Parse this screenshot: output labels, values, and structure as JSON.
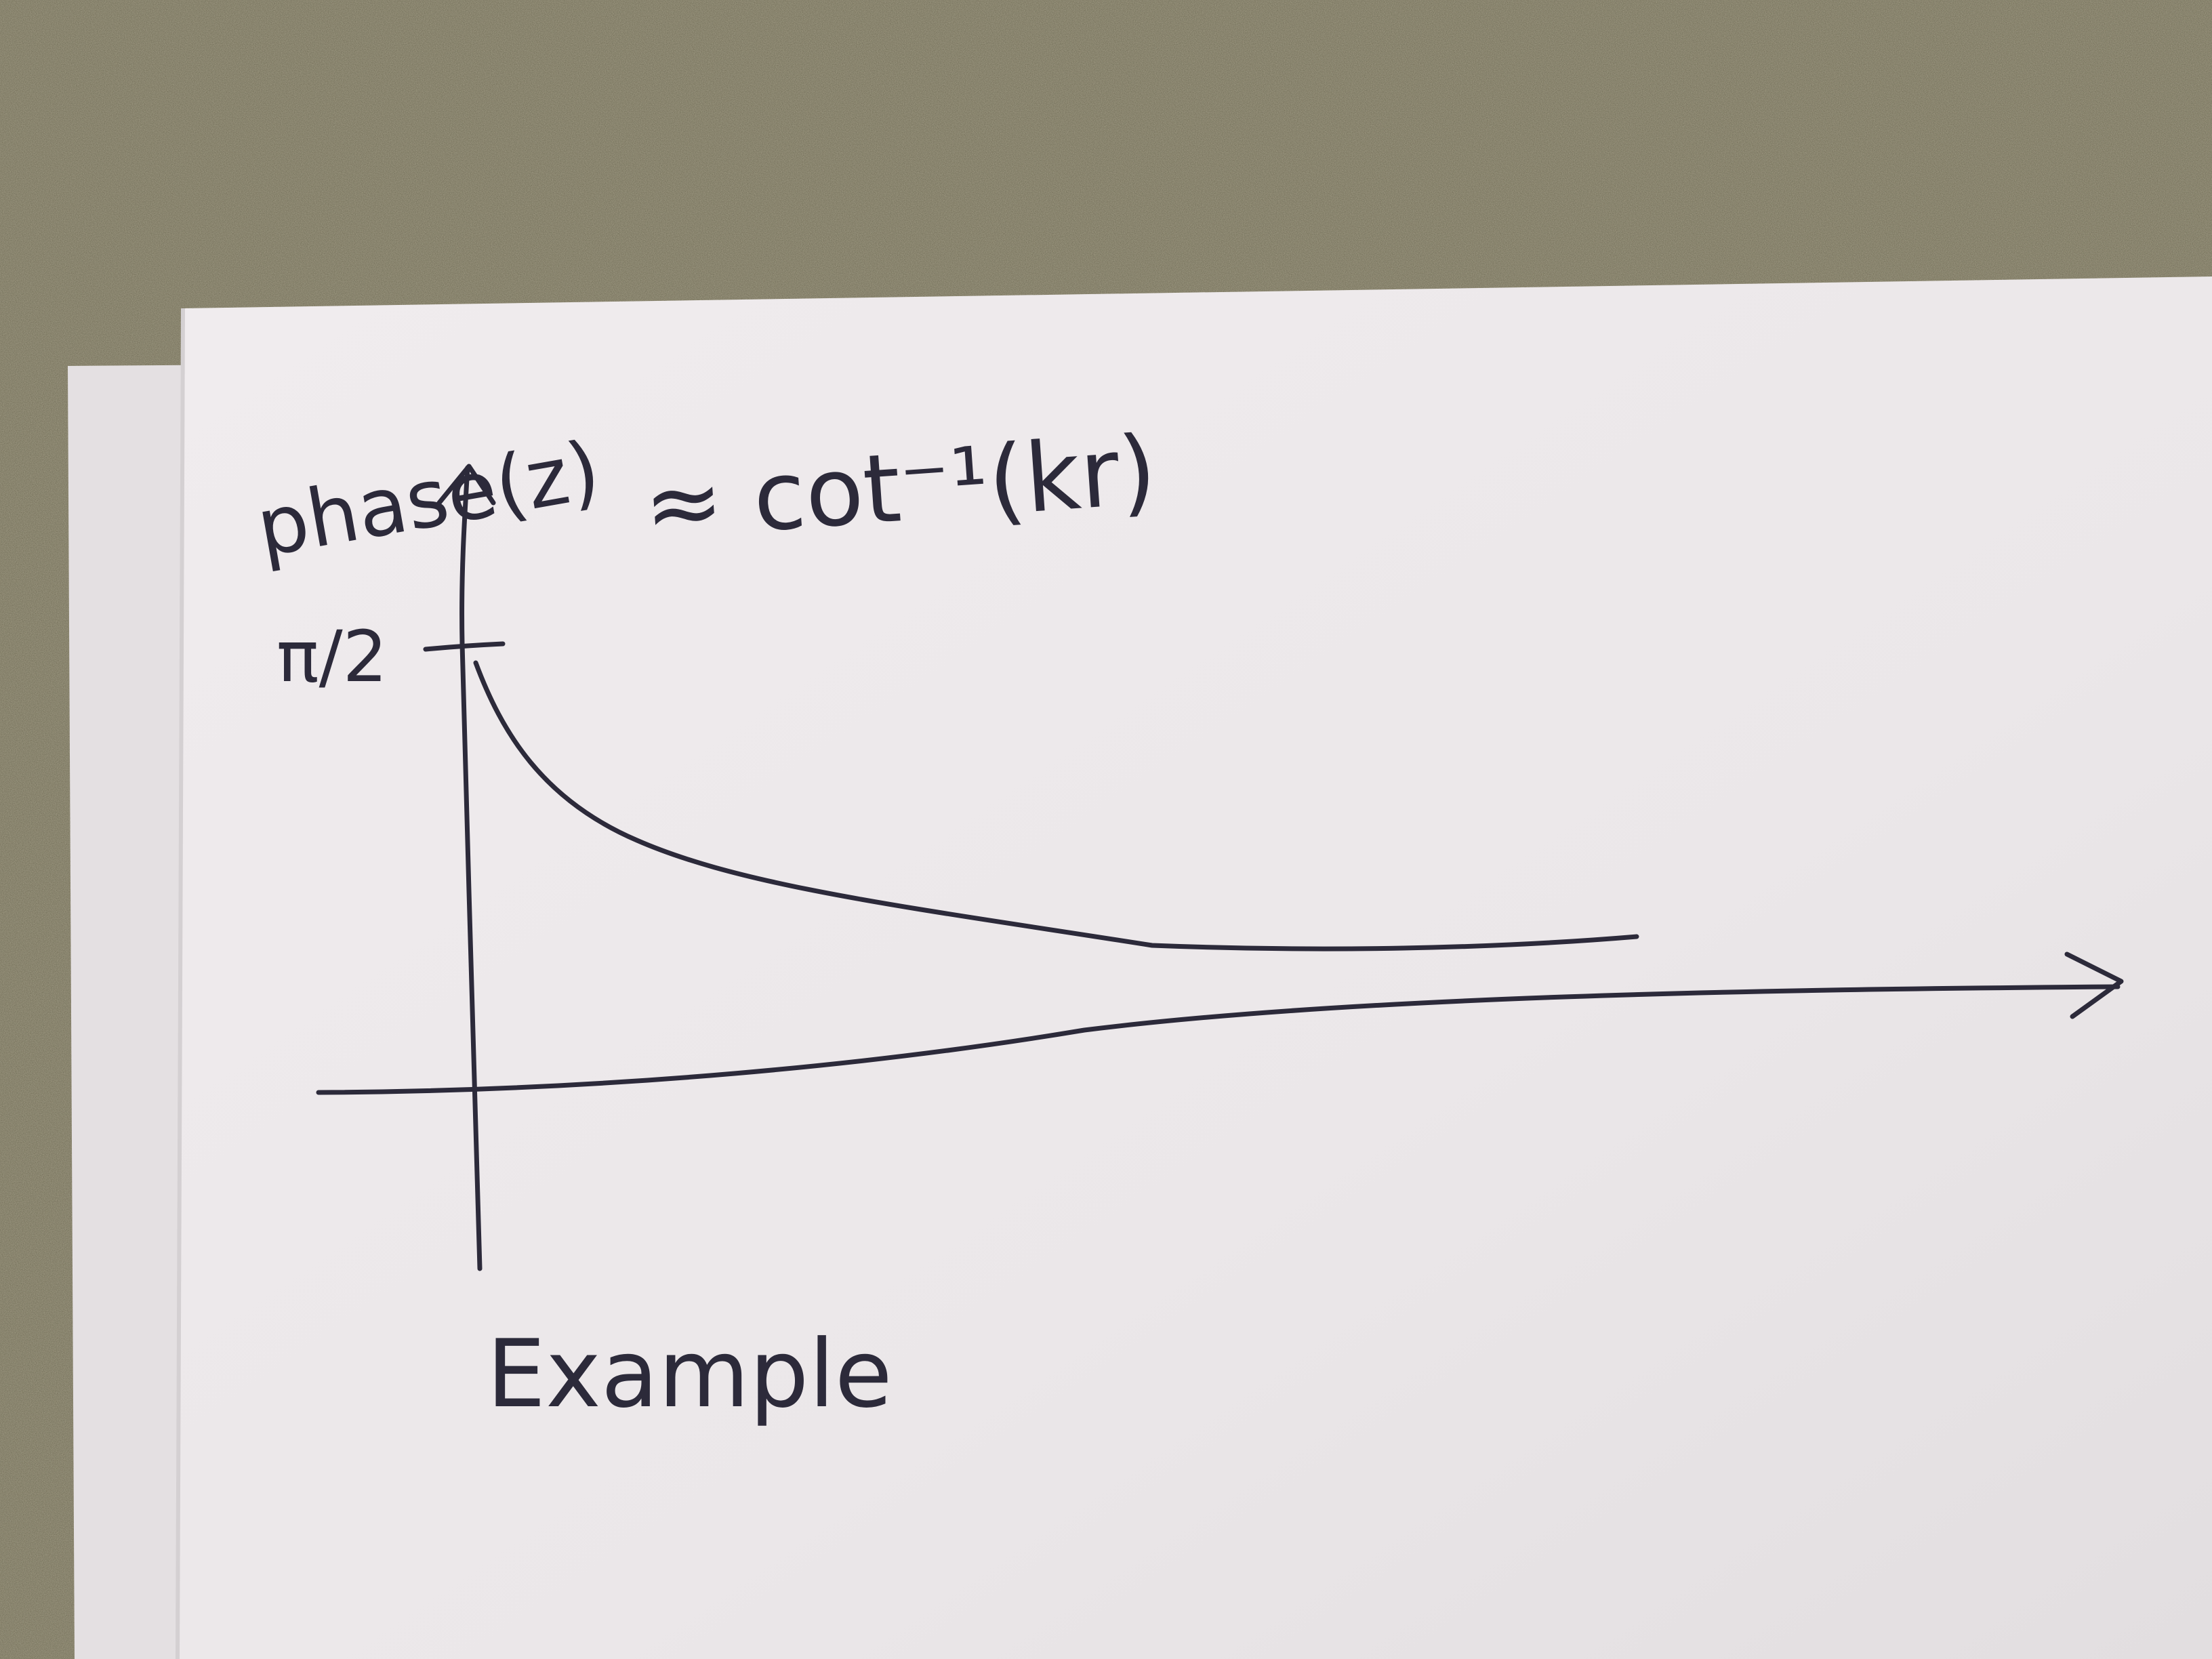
{
  "scene": {
    "colors": {
      "carpet": "#8a8570",
      "paper": "#ece8ea",
      "paper_under": "#e6e2e4",
      "ink": "#2c2a3a"
    }
  },
  "sketch": {
    "y_axis_label": "phase(z)",
    "formula": "≈ cot⁻¹(kr)",
    "tick_label": "π/2",
    "caption": "Example"
  },
  "chart_data": {
    "type": "line",
    "title": "",
    "xlabel": "",
    "ylabel": "phase(z)",
    "y_tick_labels": [
      "π/2"
    ],
    "annotations": [
      "≈ cot⁻¹(kr)",
      "Example"
    ],
    "series": [
      {
        "label": "≈ cot⁻¹(kr)",
        "x": [
          0,
          0.5,
          1,
          2,
          3,
          4,
          5,
          6
        ],
        "y": [
          1.571,
          1.107,
          0.785,
          0.464,
          0.322,
          0.245,
          0.197,
          0.165
        ]
      }
    ]
  }
}
